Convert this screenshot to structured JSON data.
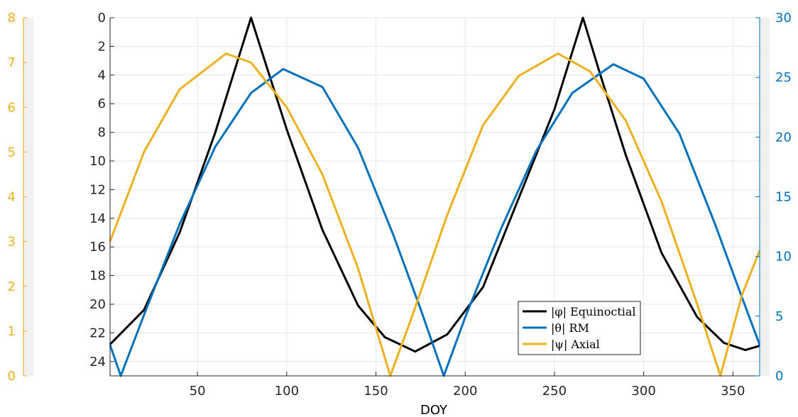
{
  "chart_data": {
    "type": "line",
    "xlabel": "DOY",
    "xlim": [
      1,
      365
    ],
    "xticks": [
      "50",
      "100",
      "150",
      "200",
      "250",
      "300",
      "350"
    ],
    "axes": {
      "left_inner": {
        "color": "#000000",
        "reversed": true,
        "ylim": [
          0,
          25
        ],
        "ticks": [
          "0",
          "2",
          "4",
          "6",
          "8",
          "10",
          "12",
          "14",
          "16",
          "18",
          "20",
          "22",
          "24"
        ]
      },
      "left_outer": {
        "color": "#EDB120",
        "ylim": [
          0,
          8
        ],
        "ticks": [
          "0",
          "1",
          "2",
          "3",
          "4",
          "5",
          "6",
          "7",
          "8"
        ]
      },
      "right": {
        "color": "#0072BD",
        "ylim": [
          0,
          30
        ],
        "ticks": [
          "0",
          "5",
          "10",
          "15",
          "20",
          "25",
          "30"
        ]
      }
    },
    "grid": true,
    "legend_position": "bottom-right",
    "series": [
      {
        "name": "|φ| Equinoctial",
        "color": "#000000",
        "axis": "left_inner",
        "x": [
          1,
          20,
          40,
          60,
          70,
          80,
          90,
          100,
          120,
          140,
          155,
          172,
          190,
          210,
          230,
          250,
          258,
          266,
          276,
          290,
          310,
          330,
          345,
          357,
          365
        ],
        "y": [
          22.8,
          20.4,
          15.0,
          8.0,
          4.0,
          0.0,
          3.9,
          7.8,
          14.8,
          20.1,
          22.3,
          23.3,
          22.1,
          18.8,
          12.6,
          6.4,
          3.2,
          0.0,
          4.1,
          9.6,
          16.4,
          20.9,
          22.7,
          23.2,
          22.9
        ]
      },
      {
        "name": "|θ| RM",
        "color": "#0072BD",
        "axis": "right",
        "x": [
          1,
          7,
          20,
          40,
          60,
          80,
          98,
          120,
          140,
          160,
          175,
          188,
          200,
          220,
          240,
          260,
          283,
          300,
          320,
          340,
          355,
          365
        ],
        "y": [
          2.6,
          0.0,
          5.1,
          12.7,
          19.2,
          23.7,
          25.7,
          24.2,
          19.1,
          11.7,
          5.6,
          0.0,
          4.9,
          12.3,
          18.9,
          23.7,
          26.1,
          24.9,
          20.3,
          12.7,
          6.6,
          2.6
        ]
      },
      {
        "name": "|ψ| Axial",
        "color": "#EDB120",
        "axis": "left_outer",
        "x": [
          1,
          20,
          40,
          66,
          80,
          100,
          120,
          140,
          158,
          170,
          190,
          210,
          230,
          252,
          270,
          290,
          310,
          330,
          343,
          355,
          365
        ],
        "y": [
          3.0,
          5.0,
          6.4,
          7.2,
          7.0,
          6.0,
          4.5,
          2.4,
          0.0,
          1.3,
          3.6,
          5.6,
          6.7,
          7.2,
          6.8,
          5.7,
          3.9,
          1.6,
          0.0,
          1.8,
          2.8
        ]
      }
    ]
  }
}
